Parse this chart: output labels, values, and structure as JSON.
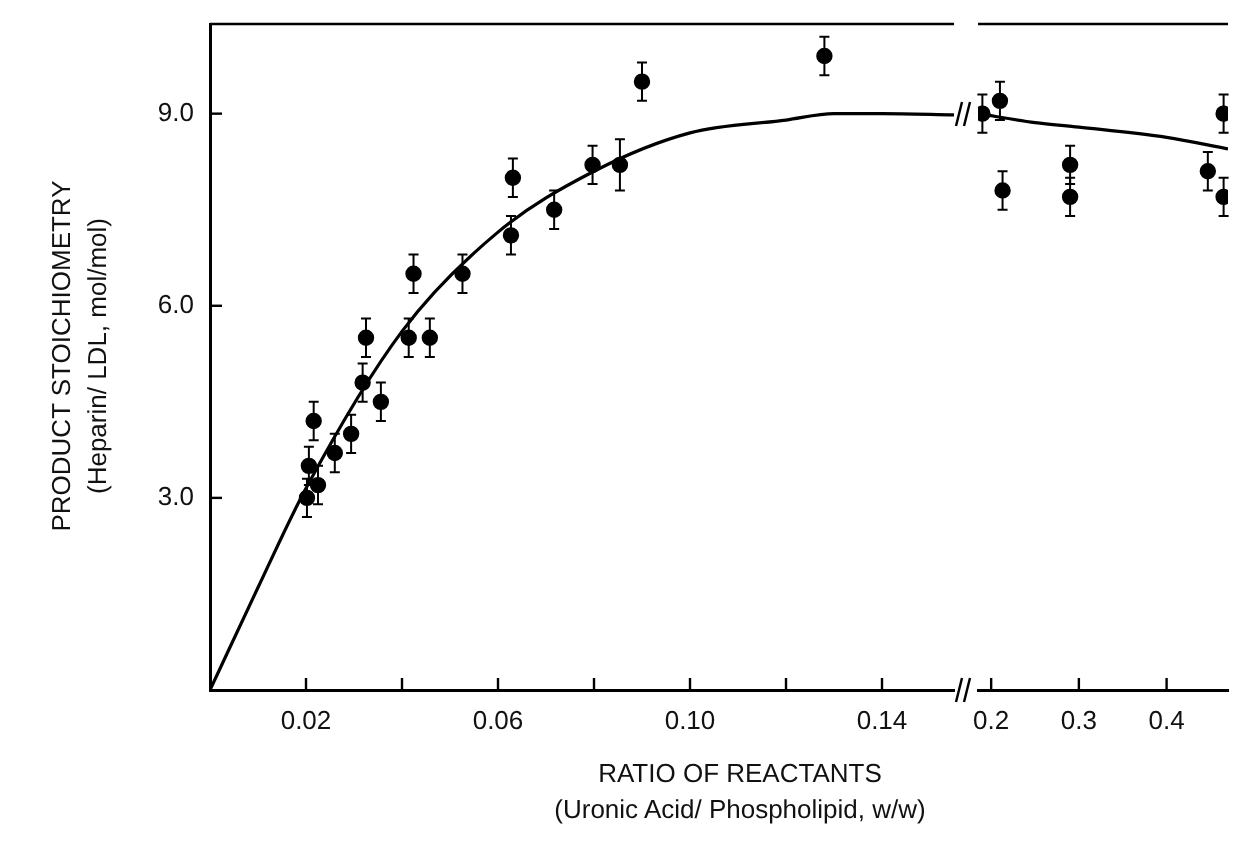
{
  "chart_data": [
    {
      "type": "scatter",
      "xlabel": "RATIO OF REACTANTS\n(Uronic Acid/ Phospholipid, w/w)",
      "ylabel": "PRODUCT STOICHIOMETRY\n(Heparin/ LDL, mol/mol)",
      "xlim": [
        0,
        0.155
      ],
      "xticks": [
        0.02,
        {
          "value": 0.04,
          "label": null
        },
        {
          "value": 0.06,
          "label": "0.06"
        },
        {
          "value": 0.08,
          "label": null
        },
        {
          "value": 0.1,
          "label": "0.10"
        },
        {
          "value": 0.12,
          "label": null
        },
        {
          "value": 0.14,
          "label": "0.14"
        }
      ],
      "ylim": [
        0,
        10.4
      ],
      "yticks": [
        {
          "value": 3,
          "label": "3.0"
        },
        {
          "value": 6,
          "label": "6.0"
        },
        {
          "value": 9,
          "label": "9.0"
        }
      ],
      "grid": false,
      "legend": false,
      "series": [
        {
          "type": "scatter",
          "marker": "circle",
          "color": "#000000",
          "x": [
            0.0202,
            0.0206,
            0.0216,
            0.0225,
            0.026,
            0.0294,
            0.0318,
            0.0325,
            0.0356,
            0.0414,
            0.0424,
            0.0458,
            0.0526,
            0.0627,
            0.0631,
            0.0717,
            0.0797,
            0.0854,
            0.09,
            0.128
          ],
          "values": [
            3.0,
            3.5,
            4.2,
            3.2,
            3.7,
            4.0,
            4.8,
            5.5,
            4.5,
            5.5,
            6.5,
            5.5,
            6.5,
            7.1,
            8.0,
            7.5,
            8.2,
            8.2,
            9.5,
            9.9
          ],
          "errors": [
            0.3,
            0.3,
            0.3,
            0.3,
            0.3,
            0.3,
            0.3,
            0.3,
            0.3,
            0.3,
            0.3,
            0.3,
            0.3,
            0.3,
            0.3,
            0.3,
            0.3,
            0.4,
            0.3,
            0.3
          ]
        },
        {
          "type": "line",
          "color": "#000000",
          "x": [
            0,
            0.01,
            0.02,
            0.04,
            0.06,
            0.08,
            0.1,
            0.12,
            0.13,
            0.14,
            0.155
          ],
          "values": [
            0,
            1.6,
            3.15,
            5.6,
            7.15,
            8.1,
            8.7,
            8.9,
            9.0,
            9.0,
            8.98
          ]
        }
      ]
    },
    {
      "type": "scatter",
      "xlim": [
        0.185,
        0.47
      ],
      "xticks": [
        0.2,
        0.3,
        0.4
      ],
      "ylim": [
        0,
        10.4
      ],
      "tick_labels": "x",
      "grid": false,
      "legend": false,
      "series": [
        {
          "type": "scatter",
          "marker": "circle",
          "color": "#000000",
          "x": [
            0.19,
            0.21,
            0.213,
            0.29,
            0.29,
            0.447,
            0.465,
            0.465
          ],
          "values": [
            9.0,
            9.2,
            7.8,
            8.2,
            7.7,
            8.1,
            9.0,
            7.7
          ],
          "errors": [
            0.3,
            0.3,
            0.3,
            0.3,
            0.3,
            0.3,
            0.3,
            0.3
          ]
        },
        {
          "type": "line",
          "color": "#000000",
          "x": [
            0.185,
            0.25,
            0.3,
            0.4,
            0.47
          ],
          "values": [
            9.0,
            8.86,
            8.79,
            8.63,
            8.45
          ]
        }
      ]
    }
  ]
}
